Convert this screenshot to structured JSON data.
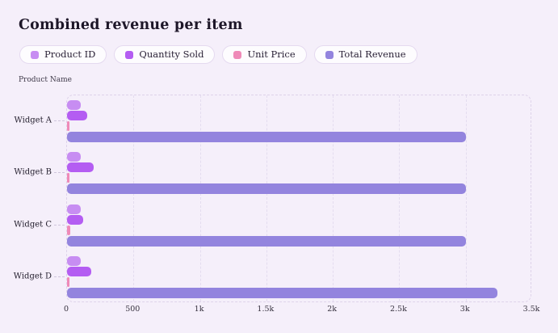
{
  "title": "Combined revenue per item",
  "axis": {
    "y_title": "Product Name",
    "x_tick_labels": [
      "0",
      "500",
      "1k",
      "1.5k",
      "2k",
      "2.5k",
      "3k",
      "3.5k"
    ]
  },
  "chart_data": {
    "type": "bar",
    "orientation": "horizontal",
    "title": "Combined revenue per item",
    "ylabel": "Product Name",
    "xlabel": "",
    "categories": [
      "Widget A",
      "Widget B",
      "Widget C",
      "Widget D"
    ],
    "series": [
      {
        "name": "Product ID",
        "color": "#c78df2",
        "values": [
          101,
          102,
          103,
          104
        ]
      },
      {
        "name": "Quantity Sold",
        "color": "#b45df2",
        "values": [
          150,
          200,
          120,
          180
        ]
      },
      {
        "name": "Unit Price",
        "color": "#ef8ab8",
        "values": [
          20,
          15,
          25,
          18
        ]
      },
      {
        "name": "Total Revenue",
        "color": "#9384de",
        "values": [
          3000,
          3000,
          3000,
          3240
        ]
      }
    ],
    "xlim": [
      0,
      3500
    ],
    "x_ticks": [
      0,
      500,
      1000,
      1500,
      2000,
      2500,
      3000,
      3500
    ],
    "grid": true,
    "legend_position": "top"
  }
}
